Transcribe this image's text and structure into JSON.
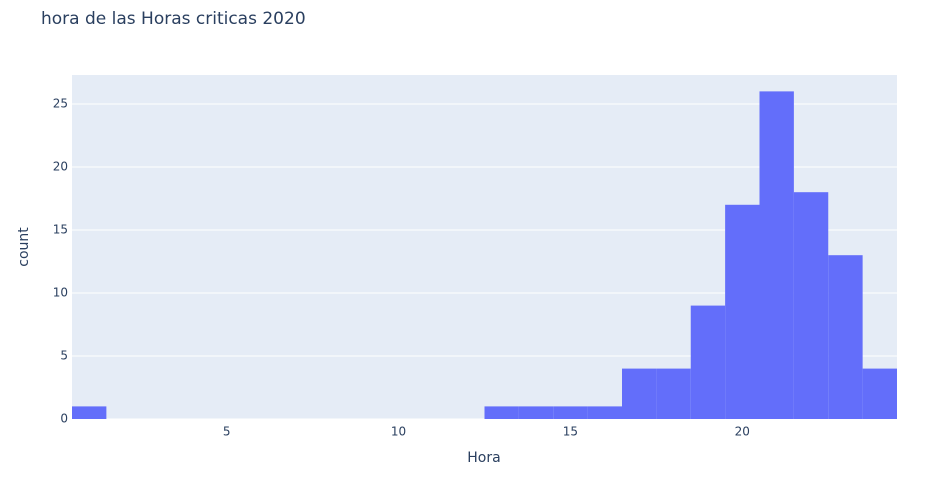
{
  "chart_data": {
    "type": "histogram",
    "title": "hora de las Horas criticas 2020",
    "x_label": "Hora",
    "y_label": "count",
    "bins": [
      0.5,
      1.5,
      2.5,
      3.5,
      4.5,
      5.5,
      6.5,
      7.5,
      8.5,
      9.5,
      10.5,
      11.5,
      12.5,
      13.5,
      14.5,
      15.5,
      16.5,
      17.5,
      18.5,
      19.5,
      20.5,
      21.5,
      22.5,
      23.5,
      24.5
    ],
    "values": [
      1,
      0,
      0,
      0,
      0,
      0,
      0,
      0,
      0,
      0,
      0,
      0,
      1,
      1,
      1,
      1,
      4,
      4,
      9,
      17,
      26,
      18,
      13,
      4
    ],
    "color": "#636efa",
    "xlim": [
      0.5,
      24.5
    ],
    "xticks": [
      5,
      10,
      15,
      20
    ],
    "ylim": [
      0,
      27.3
    ],
    "yticks": [
      0,
      5,
      10,
      15,
      20,
      25
    ],
    "grid": true
  }
}
